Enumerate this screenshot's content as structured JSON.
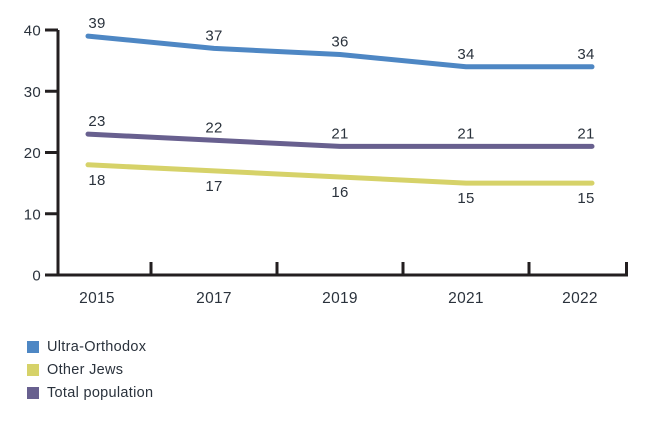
{
  "chart_data": {
    "type": "line",
    "x": [
      "2015",
      "2017",
      "2019",
      "2021",
      "2022"
    ],
    "series": [
      {
        "name": "Ultra-Orthodox",
        "color": "#4e87c4",
        "values": [
          39,
          37,
          36,
          34,
          34
        ],
        "label_position": "above"
      },
      {
        "name": "Other Jews",
        "color": "#d6d269",
        "values": [
          18,
          17,
          16,
          15,
          15
        ],
        "label_position": "below"
      },
      {
        "name": "Total population",
        "color": "#68608f",
        "values": [
          23,
          22,
          21,
          21,
          21
        ],
        "label_position": "above"
      }
    ],
    "yticks": [
      0,
      10,
      20,
      30,
      40
    ],
    "ylim": [
      0,
      40
    ],
    "title": "",
    "xlabel": "",
    "ylabel": "",
    "grid": false,
    "legend_position": "bottom-left",
    "axis_color": "#231f20",
    "text_color": "#2a323c"
  }
}
